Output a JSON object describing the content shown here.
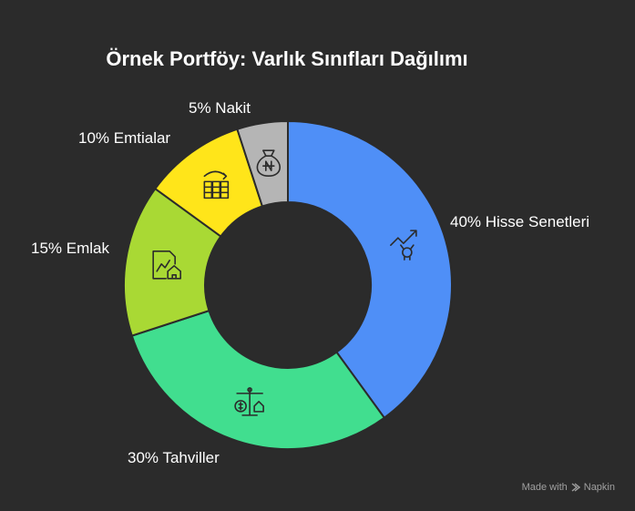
{
  "chart_data": {
    "type": "pie",
    "donut": true,
    "title": "Örnek Portföy: Varlık Sınıfları Dağılımı",
    "legend": "none",
    "slices": [
      {
        "label": "40% Hisse Senetleri",
        "value": 40,
        "color": "#4f8ff7",
        "icon": "stock-growth-icon"
      },
      {
        "label": "30% Tahviller",
        "value": 30,
        "color": "#41de8f",
        "icon": "balance-scale-icon"
      },
      {
        "label": "15% Emlak",
        "value": 15,
        "color": "#a9d934",
        "icon": "real-estate-chart-icon"
      },
      {
        "label": "10% Emtialar",
        "value": 10,
        "color": "#ffe51a",
        "icon": "commodity-bars-icon"
      },
      {
        "label": "5% Nakit",
        "value": 5,
        "color": "#b5b5b5",
        "icon": "money-bag-icon"
      }
    ]
  },
  "watermark": {
    "text": "Made with",
    "brand": "Napkin"
  }
}
